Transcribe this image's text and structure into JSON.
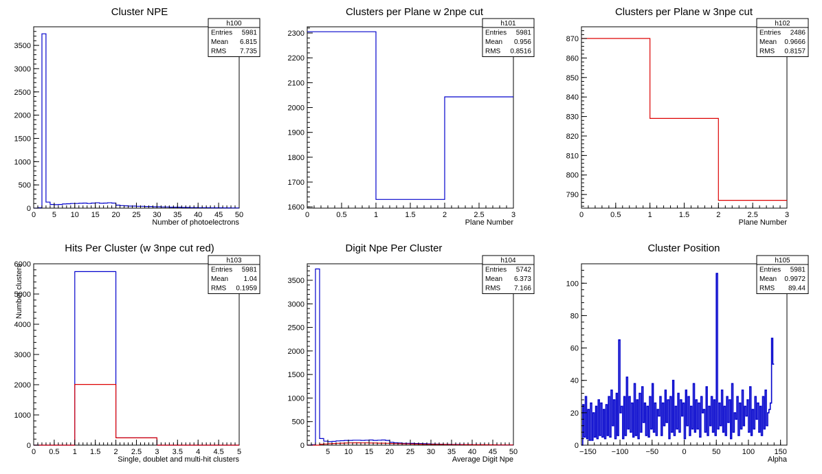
{
  "colors": {
    "blue": "#0000cc",
    "red": "#dd0000",
    "axis": "#000000",
    "background": "#ffffff"
  },
  "chart_data": [
    {
      "type": "bar",
      "style": "step-histogram",
      "title": "Cluster NPE",
      "xlabel": "Number of photoelectrons",
      "ylabel": "",
      "xlim": [
        0,
        50
      ],
      "ylim": [
        0,
        3900
      ],
      "xticks": [
        0,
        5,
        10,
        15,
        20,
        25,
        30,
        35,
        40,
        45,
        50
      ],
      "yticks": [
        0,
        500,
        1000,
        1500,
        2000,
        2500,
        3000,
        3500
      ],
      "stats": {
        "name": "h100",
        "rows": [
          [
            "Entries",
            "5981"
          ],
          [
            "Mean",
            "6.815"
          ],
          [
            "RMS",
            "7.735"
          ]
        ]
      },
      "series": [
        {
          "color": "#0000cc",
          "bin_width": 1,
          "x0": 0,
          "values": [
            0,
            10,
            3750,
            130,
            80,
            75,
            80,
            90,
            95,
            100,
            100,
            105,
            110,
            100,
            110,
            115,
            105,
            110,
            115,
            110,
            65,
            55,
            50,
            45,
            45,
            40,
            40,
            35,
            35,
            30,
            30,
            25,
            25,
            20,
            20,
            20,
            15,
            15,
            12,
            12,
            10,
            10,
            10,
            8,
            8,
            8,
            6,
            6,
            5,
            5
          ]
        }
      ]
    },
    {
      "type": "bar",
      "style": "step-histogram",
      "title": "Clusters per Plane w 2npe cut",
      "xlabel": "Plane Number",
      "ylabel": "",
      "xlim": [
        0,
        3
      ],
      "ylim": [
        1595,
        2325
      ],
      "xticks": [
        0,
        0.5,
        1,
        1.5,
        2,
        2.5,
        3
      ],
      "yticks": [
        1600,
        1700,
        1800,
        1900,
        2000,
        2100,
        2200,
        2300
      ],
      "stats": {
        "name": "h101",
        "rows": [
          [
            "Entries",
            "5981"
          ],
          [
            "Mean",
            "0.956"
          ],
          [
            "RMS",
            "0.8516"
          ]
        ]
      },
      "series": [
        {
          "color": "#0000cc",
          "bin_width": 1,
          "x0": 0,
          "values": [
            2305,
            1630,
            2043
          ]
        }
      ]
    },
    {
      "type": "bar",
      "style": "step-histogram",
      "title": "Clusters per Plane w 3npe cut",
      "xlabel": "Plane Number",
      "ylabel": "",
      "xlim": [
        0,
        3
      ],
      "ylim": [
        783,
        876
      ],
      "xticks": [
        0,
        0.5,
        1,
        1.5,
        2,
        2.5,
        3
      ],
      "yticks": [
        790,
        800,
        810,
        820,
        830,
        840,
        850,
        860,
        870
      ],
      "stats": {
        "name": "h102",
        "rows": [
          [
            "Entries",
            "2486"
          ],
          [
            "Mean",
            "0.9666"
          ],
          [
            "RMS",
            "0.8157"
          ]
        ]
      },
      "series": [
        {
          "color": "#dd0000",
          "bin_width": 1,
          "x0": 0,
          "values": [
            870,
            829,
            787
          ]
        }
      ]
    },
    {
      "type": "bar",
      "style": "step-histogram",
      "title": "Hits Per Cluster (w 3npe cut red)",
      "xlabel": "Single, doublet and multi-hit clusters",
      "ylabel": "Number clusters",
      "xlim": [
        0,
        5
      ],
      "ylim": [
        0,
        6000
      ],
      "xticks": [
        0,
        0.5,
        1,
        1.5,
        2,
        2.5,
        3,
        3.5,
        4,
        4.5,
        5
      ],
      "yticks": [
        0,
        1000,
        2000,
        3000,
        4000,
        5000,
        6000
      ],
      "stats": {
        "name": "h103",
        "rows": [
          [
            "Entries",
            "5981"
          ],
          [
            "Mean",
            "1.04"
          ],
          [
            "RMS",
            "0.1959"
          ]
        ]
      },
      "series": [
        {
          "color": "#0000cc",
          "bin_width": 1,
          "x0": 0,
          "values": [
            0,
            5740,
            241,
            0,
            0
          ]
        },
        {
          "color": "#dd0000",
          "bin_width": 1,
          "x0": 0,
          "values": [
            0,
            2010,
            241,
            0,
            0
          ]
        }
      ]
    },
    {
      "type": "bar",
      "style": "step-histogram",
      "title": "Digit Npe Per Cluster",
      "xlabel": "Average Digit Npe",
      "ylabel": "",
      "xlim": [
        0,
        50
      ],
      "ylim": [
        0,
        3850
      ],
      "xticks": [
        5,
        10,
        15,
        20,
        25,
        30,
        35,
        40,
        45,
        50
      ],
      "yticks": [
        0,
        500,
        1000,
        1500,
        2000,
        2500,
        3000,
        3500
      ],
      "stats": {
        "name": "h104",
        "rows": [
          [
            "Entries",
            "5742"
          ],
          [
            "Mean",
            "6.373"
          ],
          [
            "RMS",
            "7.166"
          ]
        ]
      },
      "series": [
        {
          "color": "#0000cc",
          "bin_width": 1,
          "x0": 0,
          "values": [
            0,
            10,
            3740,
            140,
            85,
            75,
            80,
            90,
            95,
            100,
            100,
            105,
            105,
            100,
            105,
            110,
            100,
            105,
            110,
            100,
            60,
            50,
            45,
            40,
            40,
            38,
            35,
            33,
            30,
            28,
            25,
            22,
            20,
            18,
            16,
            15,
            14,
            13,
            12,
            11,
            10,
            10,
            9,
            8,
            8,
            7,
            6,
            6,
            5,
            5
          ]
        },
        {
          "color": "#dd0000",
          "bin_width": 1,
          "x0": 0,
          "values": [
            0,
            0,
            0,
            20,
            25,
            30,
            35,
            40,
            42,
            45,
            48,
            50,
            50,
            48,
            48,
            45,
            45,
            42,
            42,
            40,
            35,
            32,
            30,
            28,
            26,
            24,
            22,
            20,
            18,
            17,
            16,
            15,
            14,
            13,
            12,
            11,
            10,
            10,
            9,
            9,
            8,
            8,
            7,
            7,
            6,
            6,
            5,
            5,
            5,
            5
          ]
        }
      ]
    },
    {
      "type": "bar",
      "style": "step-histogram",
      "title": "Cluster Position",
      "xlabel": "Alpha",
      "ylabel": "",
      "xlim": [
        -160,
        160
      ],
      "ylim": [
        0,
        112
      ],
      "xticks": [
        -150,
        -100,
        -50,
        0,
        50,
        100,
        150
      ],
      "yticks": [
        0,
        20,
        40,
        60,
        80,
        100
      ],
      "stats": {
        "name": "h105",
        "rows": [
          [
            "Entries",
            "5981"
          ],
          [
            "Mean",
            "0.9972"
          ],
          [
            "RMS",
            "89.44"
          ]
        ]
      },
      "series": [
        {
          "color": "#0000cc",
          "bin_width": 2,
          "x0": -160,
          "values": [
            0,
            25,
            5,
            30,
            4,
            22,
            3,
            26,
            3,
            20,
            5,
            24,
            4,
            28,
            6,
            26,
            5,
            22,
            4,
            25,
            6,
            30,
            5,
            34,
            12,
            28,
            4,
            32,
            6,
            65,
            20,
            24,
            4,
            30,
            6,
            42,
            10,
            30,
            8,
            26,
            5,
            38,
            6,
            28,
            4,
            32,
            8,
            36,
            14,
            26,
            6,
            24,
            5,
            30,
            10,
            38,
            8,
            26,
            6,
            22,
            18,
            30,
            6,
            26,
            12,
            34,
            14,
            28,
            4,
            30,
            8,
            40,
            6,
            24,
            10,
            32,
            8,
            28,
            18,
            26,
            4,
            34,
            12,
            30,
            6,
            24,
            10,
            38,
            8,
            28,
            10,
            26,
            5,
            30,
            20,
            22,
            8,
            36,
            6,
            24,
            12,
            30,
            8,
            28,
            6,
            106,
            10,
            26,
            12,
            34,
            8,
            24,
            6,
            30,
            14,
            28,
            4,
            38,
            8,
            20,
            16,
            30,
            6,
            26,
            10,
            34,
            12,
            24,
            18,
            28,
            8,
            36,
            6,
            22,
            10,
            30,
            16,
            26,
            8,
            24,
            6,
            30,
            10,
            34,
            12,
            20,
            22,
            26,
            66,
            50
          ]
        }
      ]
    }
  ]
}
